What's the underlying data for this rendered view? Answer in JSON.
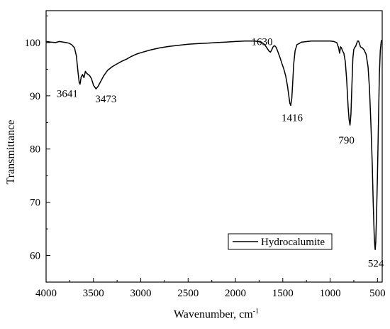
{
  "chart_data": {
    "type": "line",
    "xlabel": "Wavenumber, cm",
    "xlabel_sup": "-1",
    "ylabel": "Transmittance",
    "xlim": [
      4000,
      450
    ],
    "ylim": [
      55,
      106
    ],
    "x_reversed": true,
    "xticks": [
      4000,
      3500,
      3000,
      2500,
      2000,
      1500,
      1000,
      500
    ],
    "yticks": [
      60,
      70,
      80,
      90,
      100
    ],
    "grid": false,
    "legend": {
      "position": "bottom-right",
      "entries": [
        "Hydrocalumite"
      ]
    },
    "series": [
      {
        "name": "Hydrocalumite",
        "color": "#000000",
        "points": [
          [
            4000,
            100.2
          ],
          [
            3950,
            100.1
          ],
          [
            3900,
            100.0
          ],
          [
            3860,
            100.2
          ],
          [
            3820,
            100.1
          ],
          [
            3790,
            100.0
          ],
          [
            3760,
            99.9
          ],
          [
            3730,
            99.6
          ],
          [
            3700,
            99.0
          ],
          [
            3680,
            97.5
          ],
          [
            3660,
            94.0
          ],
          [
            3650,
            92.5
          ],
          [
            3641,
            92.2
          ],
          [
            3630,
            93.5
          ],
          [
            3615,
            94.0
          ],
          [
            3600,
            93.4
          ],
          [
            3585,
            94.6
          ],
          [
            3570,
            94.2
          ],
          [
            3555,
            94.0
          ],
          [
            3540,
            93.8
          ],
          [
            3520,
            93.2
          ],
          [
            3500,
            92.0
          ],
          [
            3473,
            91.3
          ],
          [
            3450,
            91.8
          ],
          [
            3420,
            92.8
          ],
          [
            3390,
            93.8
          ],
          [
            3350,
            94.8
          ],
          [
            3300,
            95.5
          ],
          [
            3250,
            96.0
          ],
          [
            3200,
            96.5
          ],
          [
            3150,
            96.9
          ],
          [
            3100,
            97.4
          ],
          [
            3050,
            97.8
          ],
          [
            3000,
            98.1
          ],
          [
            2900,
            98.6
          ],
          [
            2800,
            99.0
          ],
          [
            2700,
            99.3
          ],
          [
            2600,
            99.5
          ],
          [
            2500,
            99.7
          ],
          [
            2400,
            99.8
          ],
          [
            2300,
            99.9
          ],
          [
            2200,
            100.0
          ],
          [
            2100,
            100.1
          ],
          [
            2000,
            100.2
          ],
          [
            1900,
            100.3
          ],
          [
            1800,
            100.3
          ],
          [
            1760,
            100.2
          ],
          [
            1720,
            100.0
          ],
          [
            1690,
            99.6
          ],
          [
            1660,
            98.8
          ],
          [
            1645,
            98.4
          ],
          [
            1630,
            98.2
          ],
          [
            1615,
            98.7
          ],
          [
            1600,
            99.3
          ],
          [
            1585,
            99.4
          ],
          [
            1570,
            99.1
          ],
          [
            1550,
            98.2
          ],
          [
            1530,
            97.2
          ],
          [
            1510,
            96.1
          ],
          [
            1490,
            95.1
          ],
          [
            1470,
            93.8
          ],
          [
            1450,
            91.8
          ],
          [
            1435,
            89.8
          ],
          [
            1425,
            88.6
          ],
          [
            1416,
            88.2
          ],
          [
            1405,
            89.5
          ],
          [
            1395,
            92.5
          ],
          [
            1385,
            96.0
          ],
          [
            1370,
            98.5
          ],
          [
            1350,
            99.6
          ],
          [
            1300,
            100.1
          ],
          [
            1200,
            100.3
          ],
          [
            1100,
            100.3
          ],
          [
            1000,
            100.3
          ],
          [
            960,
            100.2
          ],
          [
            930,
            100.0
          ],
          [
            910,
            99.0
          ],
          [
            900,
            98.0
          ],
          [
            890,
            99.2
          ],
          [
            880,
            99.0
          ],
          [
            870,
            98.5
          ],
          [
            855,
            98.0
          ],
          [
            840,
            96.5
          ],
          [
            825,
            93.0
          ],
          [
            810,
            88.0
          ],
          [
            800,
            85.5
          ],
          [
            790,
            84.5
          ],
          [
            780,
            86.5
          ],
          [
            770,
            92.0
          ],
          [
            760,
            97.0
          ],
          [
            750,
            98.7
          ],
          [
            740,
            99.1
          ],
          [
            730,
            99.3
          ],
          [
            720,
            99.8
          ],
          [
            710,
            100.3
          ],
          [
            700,
            100.3
          ],
          [
            690,
            99.8
          ],
          [
            680,
            99.2
          ],
          [
            660,
            99.0
          ],
          [
            640,
            98.6
          ],
          [
            620,
            97.8
          ],
          [
            600,
            95.5
          ],
          [
            585,
            91.5
          ],
          [
            570,
            85.0
          ],
          [
            555,
            77.0
          ],
          [
            545,
            70.0
          ],
          [
            535,
            64.0
          ],
          [
            528,
            61.8
          ],
          [
            524,
            61.1
          ],
          [
            518,
            62.5
          ],
          [
            510,
            67.5
          ],
          [
            500,
            75.0
          ],
          [
            490,
            85.0
          ],
          [
            480,
            94.0
          ],
          [
            470,
            98.5
          ],
          [
            460,
            100.3
          ],
          [
            453,
            100.5
          ]
        ]
      }
    ],
    "annotations": [
      {
        "text": "3641",
        "x": 3641,
        "y": 92.2
      },
      {
        "text": "3473",
        "x": 3473,
        "y": 91.3
      },
      {
        "text": "1630",
        "x": 1630,
        "y": 98.2
      },
      {
        "text": "1416",
        "x": 1416,
        "y": 88.2
      },
      {
        "text": "790",
        "x": 790,
        "y": 84.5
      },
      {
        "text": "524",
        "x": 524,
        "y": 61.1
      }
    ]
  }
}
